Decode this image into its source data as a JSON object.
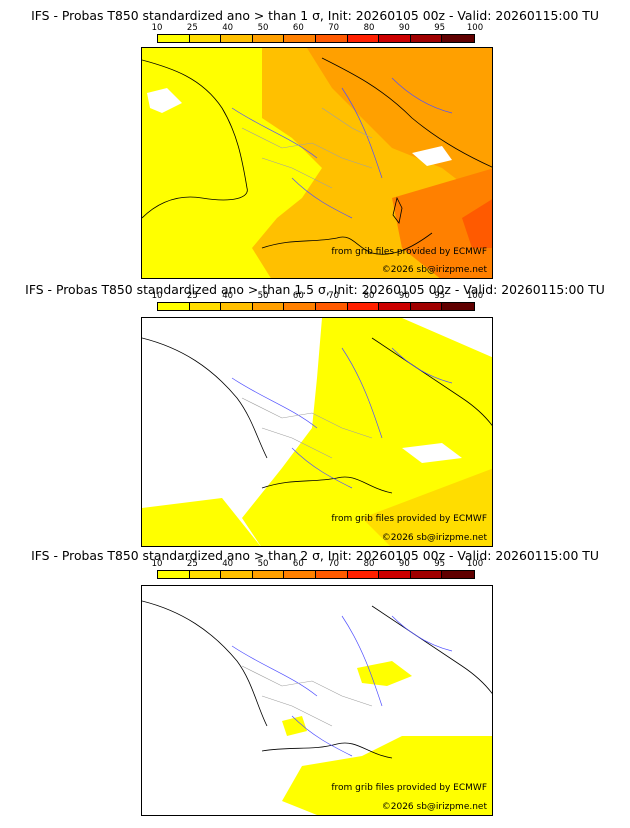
{
  "legend": {
    "ticks": [
      "10",
      "25",
      "40",
      "50",
      "60",
      "70",
      "80",
      "90",
      "95",
      "100"
    ],
    "colors": [
      "#ffff00",
      "#ffdd00",
      "#ffc000",
      "#ffa000",
      "#ff8000",
      "#ff5a00",
      "#ff2000",
      "#cc0000",
      "#a00000",
      "#600000"
    ]
  },
  "panels": [
    {
      "title": "IFS - Probas T850  standardized ano > than 1 σ, Init: 20260105 00z - Valid: 20260115:00 TU",
      "credit": "from grib files provided by ECMWF",
      "copyright": "©2026 sb@irizpme.net"
    },
    {
      "title": "IFS - Probas T850  standardized ano > than 1.5 σ, Init: 20260105 00z - Valid: 20260115:00 TU",
      "credit": "from grib files provided by ECMWF",
      "copyright": "©2026 sb@irizpme.net"
    },
    {
      "title": "IFS - Probas T850  standardized ano > than 2 σ, Init: 20260105 00z - Valid: 20260115:00 TU",
      "credit": "from grib files provided by ECMWF",
      "copyright": "©2026 sb@irizpme.net"
    }
  ]
}
